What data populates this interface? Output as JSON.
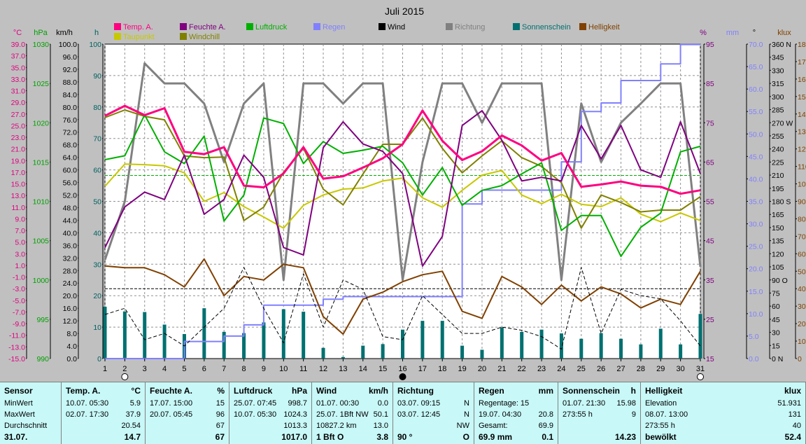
{
  "chart_data": {
    "type": "line",
    "title": "Juli 2015",
    "categories": [
      "1",
      "2",
      "3",
      "4",
      "5",
      "6",
      "7",
      "8",
      "9",
      "10",
      "11",
      "12",
      "13",
      "14",
      "15",
      "16",
      "17",
      "18",
      "19",
      "20",
      "21",
      "22",
      "23",
      "24",
      "25",
      "26",
      "27",
      "28",
      "29",
      "30",
      "31"
    ],
    "axes": {
      "temp": {
        "label": "°C",
        "color": "#e0007f",
        "min": -15,
        "max": 39,
        "ticks": [
          "39.0",
          "37.0",
          "35.0",
          "33.0",
          "31.0",
          "29.0",
          "27.0",
          "25.0",
          "23.0",
          "21.0",
          "19.0",
          "17.0",
          "15.0",
          "13.0",
          "11.0",
          "9.0",
          "7.0",
          "5.0",
          "3.0",
          "1.0",
          "-1.0",
          "-3.0",
          "-5.0",
          "-7.0",
          "-9.0",
          "-11.0",
          "-13.0",
          "-15.0"
        ]
      },
      "press": {
        "label": "hPa",
        "color": "#00a000",
        "min": 990,
        "max": 1030,
        "ticks": [
          "1030",
          "1025",
          "1020",
          "1015",
          "1010",
          "1005",
          "1000",
          "995",
          "990"
        ]
      },
      "wind": {
        "label": "km/h",
        "color": "#000000",
        "min": 0,
        "max": 100,
        "ticks": [
          "100.0",
          "96.0",
          "92.0",
          "88.0",
          "84.0",
          "80.0",
          "76.0",
          "72.0",
          "68.0",
          "64.0",
          "60.0",
          "56.0",
          "52.0",
          "48.0",
          "44.0",
          "40.0",
          "36.0",
          "32.0",
          "28.0",
          "24.0",
          "20.0",
          "16.0",
          "12.0",
          "8.0",
          "4.0",
          "0.0"
        ]
      },
      "sun": {
        "label": "h",
        "color": "#006060",
        "min": 0,
        "max": 100,
        "ticks": [
          "100",
          "90",
          "80",
          "70",
          "60",
          "50",
          "40",
          "30",
          "20",
          "10",
          "0"
        ]
      },
      "hum": {
        "label": "%",
        "color": "#800080",
        "min": 15,
        "max": 100,
        "ticks": [
          "95",
          "85",
          "75",
          "65",
          "55",
          "45",
          "35",
          "25",
          "15"
        ]
      },
      "rain": {
        "label": "mm",
        "color": "#8080ff",
        "min": 0,
        "max": 70,
        "ticks": [
          "70.0",
          "65.0",
          "60.0",
          "55.0",
          "50.0",
          "45.0",
          "40.0",
          "35.0",
          "30.0",
          "25.0",
          "20.0",
          "15.0",
          "10.0",
          "5.0",
          "0.0"
        ]
      },
      "dir": {
        "label": "°",
        "color": "#000000",
        "min": 0,
        "max": 360,
        "ticks": [
          "360 N",
          "345",
          "330",
          "315",
          "300",
          "285",
          "270 W",
          "255",
          "240",
          "225",
          "210",
          "195",
          "180 S",
          "165",
          "150",
          "135",
          "120",
          "105",
          "90 O",
          "75",
          "60",
          "45",
          "30",
          "15",
          "0 N"
        ]
      },
      "light": {
        "label": "klux",
        "color": "#804000",
        "min": 0,
        "max": 180,
        "ticks": [
          "180",
          "170",
          "160",
          "150",
          "140",
          "130",
          "120",
          "110",
          "100",
          "90",
          "80",
          "70",
          "60",
          "50",
          "40",
          "30",
          "20",
          "10",
          "0"
        ]
      }
    },
    "legend": [
      {
        "name": "Temp. A.",
        "color": "#ff0080"
      },
      {
        "name": "Feuchte A.",
        "color": "#800080"
      },
      {
        "name": "Luftdruck",
        "color": "#00b000"
      },
      {
        "name": "Regen",
        "color": "#8080ff"
      },
      {
        "name": "Wind",
        "color": "#000000"
      },
      {
        "name": "Richtung",
        "color": "#808080"
      },
      {
        "name": "Sonnenschein",
        "color": "#007070"
      },
      {
        "name": "Helligkeit",
        "color": "#804000"
      },
      {
        "name": "Taupunkt",
        "color": "#c8c800"
      },
      {
        "name": "Windchill",
        "color": "#808000"
      }
    ],
    "series": [
      {
        "name": "Temp. A.",
        "axis": "temp",
        "color": "#ff0080",
        "width": 3,
        "values": [
          26.7,
          28.4,
          26.8,
          28.0,
          20.5,
          20.1,
          21.3,
          14.7,
          14.4,
          16.8,
          21.3,
          15.9,
          16.3,
          17.8,
          19.4,
          21.8,
          27.6,
          22.4,
          19.1,
          20.6,
          23.3,
          21.6,
          19.0,
          20.3,
          14.5,
          14.9,
          15.4,
          14.7,
          14.5,
          13.3,
          13.9
        ]
      },
      {
        "name": "Feuchte A.",
        "axis": "hum",
        "color": "#800080",
        "width": 2,
        "values": [
          45,
          56,
          60,
          58,
          70,
          54,
          58,
          70,
          64,
          45,
          43,
          72,
          79,
          73,
          71,
          65,
          40,
          48,
          78,
          82,
          74,
          63,
          64,
          63,
          78,
          69,
          78,
          66,
          64,
          79,
          65
        ]
      },
      {
        "name": "Luftdruck",
        "axis": "press",
        "color": "#00b000",
        "width": 2,
        "values": [
          1015.3,
          1015.8,
          1021.0,
          1016.3,
          1014.8,
          1018.3,
          1007.5,
          1010.8,
          1020.6,
          1019.9,
          1014.8,
          1017.6,
          1016.1,
          1016.5,
          1017.0,
          1014.9,
          1010.8,
          1014.3,
          1009.5,
          1011.4,
          1012.0,
          1013.5,
          1014.9,
          1006.3,
          1008.2,
          1008.2,
          1003.0,
          1006.7,
          1008.5,
          1016.3,
          1017.0
        ]
      },
      {
        "name": "Taupunkt",
        "axis": "temp",
        "color": "#c8c800",
        "width": 2,
        "values": [
          14.6,
          18.4,
          18.3,
          18.1,
          16.9,
          12.0,
          13.5,
          11.1,
          9.3,
          7.4,
          11.3,
          13.1,
          14.1,
          14.3,
          15.5,
          16.0,
          12.6,
          11.0,
          13.9,
          16.5,
          17.3,
          13.1,
          11.6,
          13.2,
          11.5,
          11.1,
          12.6,
          9.8,
          8.5,
          10.0,
          8.7
        ]
      },
      {
        "name": "Windchill",
        "axis": "temp",
        "color": "#808000",
        "width": 2,
        "values": [
          26.4,
          27.7,
          26.6,
          26.0,
          19.8,
          19.5,
          19.6,
          8.7,
          11.0,
          17.0,
          21.1,
          14.1,
          11.4,
          16.7,
          21.8,
          21.8,
          26.3,
          21.1,
          16.9,
          19.8,
          22.4,
          19.5,
          18.0,
          15.2,
          7.4,
          13.1,
          11.8,
          10.2,
          10.5,
          10.5,
          12.8
        ]
      },
      {
        "name": "Regen",
        "axis": "rain",
        "color": "#8080ff",
        "width": 2,
        "stepped": true,
        "values": [
          0,
          0,
          0,
          0,
          3.8,
          3.8,
          5.0,
          7.5,
          11.9,
          11.9,
          11.9,
          13.2,
          13.8,
          13.8,
          13.8,
          13.8,
          13.8,
          13.8,
          34.4,
          37.5,
          37.5,
          37.5,
          37.5,
          43.8,
          55.0,
          56.9,
          61.9,
          61.9,
          65.6,
          69.9,
          69.9
        ]
      },
      {
        "name": "Richtung",
        "axis": "dir",
        "color": "#808080",
        "width": 3,
        "values": [
          113,
          180,
          338,
          315,
          315,
          292,
          225,
          292,
          315,
          90,
          315,
          315,
          292,
          315,
          315,
          90,
          225,
          315,
          315,
          270,
          315,
          315,
          315,
          90,
          292,
          225,
          270,
          292,
          315,
          315,
          105
        ]
      },
      {
        "name": "Wind",
        "axis": "wind",
        "color": "#000000",
        "width": 1,
        "dashed": true,
        "values": [
          14,
          16,
          6,
          8,
          4,
          10,
          16,
          29,
          16,
          5,
          27,
          10,
          25,
          22,
          7,
          6,
          20,
          14,
          8,
          8,
          10,
          9,
          7,
          3,
          29,
          8,
          22,
          20,
          19,
          12,
          4
        ]
      },
      {
        "name": "Helligkeit",
        "axis": "light",
        "color": "#804000",
        "width": 2,
        "values": [
          53,
          52,
          52,
          48,
          41,
          57,
          36,
          47,
          45,
          54,
          52,
          24,
          14,
          34,
          38,
          44,
          48,
          50,
          27,
          23,
          47,
          41,
          31,
          42,
          33,
          41,
          37,
          29,
          34,
          31,
          50
        ]
      },
      {
        "name": "Sonnenschein",
        "axis": "sun",
        "color": "#007070",
        "type": "bar",
        "values": [
          16.5,
          15.0,
          14.8,
          10.8,
          7.8,
          16.0,
          8.5,
          8.1,
          11.5,
          15.7,
          14.9,
          3.4,
          0.5,
          4.1,
          4.6,
          9.2,
          12.0,
          12.0,
          4.1,
          2.8,
          9.9,
          8.5,
          9.2,
          8.0,
          6.3,
          8.1,
          6.3,
          4.5,
          9.5,
          4.5,
          14.2
        ]
      }
    ],
    "reference_lines": [
      {
        "axis": "press",
        "value": 1013.3,
        "color": "#00b000",
        "style": "dashed"
      },
      {
        "axis": "light",
        "value": 40,
        "color": "#000000",
        "style": "dashed"
      }
    ]
  },
  "panel": {
    "columns": [
      {
        "id": "sensor",
        "header": "Sensor",
        "unit": "",
        "rows": [
          [
            "MinWert",
            ""
          ],
          [
            "MaxWert",
            ""
          ],
          [
            "Durchschnitt",
            ""
          ],
          [
            "31.07.",
            ""
          ]
        ]
      },
      {
        "id": "temp",
        "header": "Temp. A.",
        "unit": "°C",
        "rows": [
          [
            "10.07.  05:30",
            "5.9"
          ],
          [
            "02.07.  17:30",
            "37.9"
          ],
          [
            "",
            "20.54"
          ],
          [
            "",
            "14.7"
          ]
        ]
      },
      {
        "id": "hum",
        "header": "Feuchte A.",
        "unit": "%",
        "rows": [
          [
            "17.07.  15:00",
            "15"
          ],
          [
            "20.07.  05:45",
            "96"
          ],
          [
            "",
            "67"
          ],
          [
            "",
            "67"
          ]
        ]
      },
      {
        "id": "press",
        "header": "Luftdruck",
        "unit": "hPa",
        "rows": [
          [
            "25.07.  07:45",
            "998.7"
          ],
          [
            "10.07.  05:30",
            "1024.3"
          ],
          [
            "",
            "1013.3"
          ],
          [
            "",
            "1017.0"
          ]
        ]
      },
      {
        "id": "wind",
        "header": "Wind",
        "unit": "km/h",
        "rows": [
          [
            "01.07.  00:30",
            "0.0"
          ],
          [
            "25.07.  1Bft NW",
            "50.1"
          ],
          [
            "10827.2 km",
            "13.0"
          ],
          [
            "1 Bft O",
            "3.8"
          ]
        ]
      },
      {
        "id": "dir",
        "header": "Richtung",
        "unit": "",
        "rows": [
          [
            "03.07.  09:15",
            "N"
          ],
          [
            "03.07.  12:45",
            "N"
          ],
          [
            "",
            "NW"
          ],
          [
            "90 °",
            "O"
          ]
        ]
      },
      {
        "id": "rain",
        "header": "Regen",
        "unit": "mm",
        "rows": [
          [
            "Regentage: 15",
            ""
          ],
          [
            "19.07.  04:30",
            "20.8"
          ],
          [
            "Gesamt:",
            "69.9"
          ],
          [
            "69.9 mm",
            "0.1"
          ]
        ]
      },
      {
        "id": "sun",
        "header": "Sonnenschein",
        "unit": "h",
        "rows": [
          [
            "01.07.  21:30",
            "15.98"
          ],
          [
            "273:55 h",
            "9"
          ],
          [
            "",
            ""
          ],
          [
            "",
            "14.23"
          ]
        ]
      },
      {
        "id": "light",
        "header": "Helligkeit",
        "unit": "klux",
        "rows": [
          [
            "Elevation",
            "51.931"
          ],
          [
            "08.07.  13:00",
            "131"
          ],
          [
            "273:55 h",
            "40"
          ],
          [
            "bewölkt",
            "52.4"
          ]
        ]
      }
    ]
  }
}
